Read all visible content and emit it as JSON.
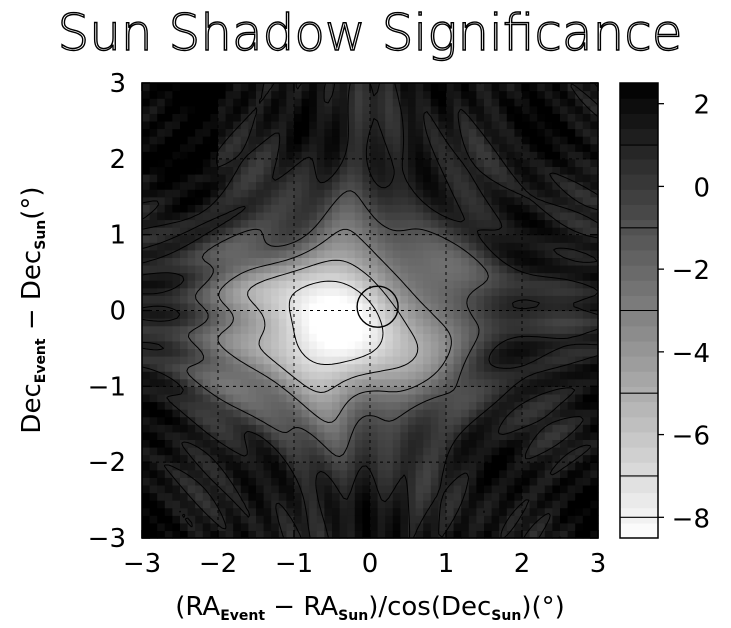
{
  "chart_data": {
    "type": "heatmap",
    "title": "Sun Shadow Significance",
    "xlabel_parts": [
      "(RA",
      "Event",
      " − RA",
      "Sun",
      ")/cos(Dec",
      "Sun",
      ")(°)"
    ],
    "ylabel_parts": [
      "Dec",
      "Event",
      " − Dec",
      "Sun",
      "(°)"
    ],
    "x_range": [
      -3,
      3
    ],
    "y_range": [
      -3,
      3
    ],
    "x_ticks": [
      -3,
      -2,
      -1,
      0,
      1,
      2,
      3
    ],
    "y_ticks": [
      -3,
      -2,
      -1,
      0,
      1,
      2,
      3
    ],
    "x_tick_labels": [
      "−3",
      "−2",
      "−1",
      "0",
      "1",
      "2",
      "3"
    ],
    "y_tick_labels": [
      "−3",
      "−2",
      "−1",
      "0",
      "1",
      "2",
      "3"
    ],
    "grid": true,
    "colorbar": {
      "range": [
        -8.5,
        2.5
      ],
      "ticks": [
        2,
        0,
        -2,
        -4,
        -6,
        -8
      ],
      "tick_labels": [
        "2",
        "0",
        "−2",
        "−4",
        "−6",
        "−8"
      ],
      "contour_levels": [
        1,
        -1,
        -3,
        -5,
        -7,
        -8
      ]
    },
    "contour_levels": [
      1,
      -1,
      -3,
      -5,
      -7
    ],
    "features": {
      "deficit_center": [
        -0.5,
        -0.2
      ],
      "deficit_min": -8.3,
      "sun_marker": {
        "x": 0.1,
        "y": 0.05,
        "radius_deg": 0.27
      }
    },
    "colors": {
      "low": "#ffffff",
      "high": "#000000",
      "contour": "#000000"
    }
  }
}
